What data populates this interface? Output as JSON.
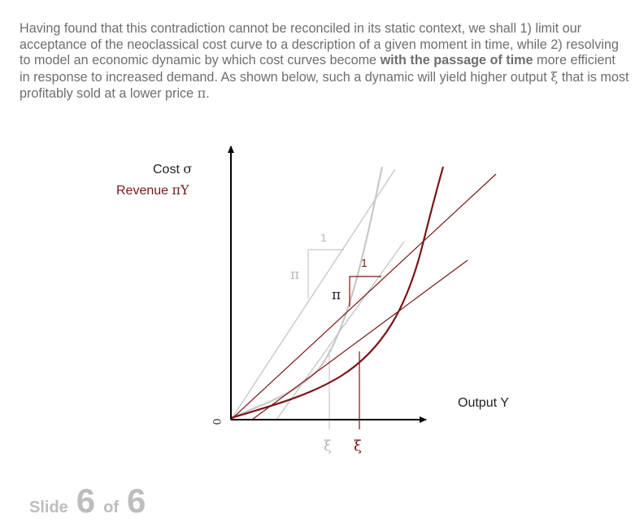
{
  "paragraph": {
    "t1": "Having found that this contradiction cannot be reconciled in its static context, we shall 1) limit our acceptance of the neoclassical cost curve to a description of a given moment in time, while 2) resolving to model an economic dynamic by which cost curves become ",
    "b1": "with the passage of time",
    "t2": " more efficient in response to increased demand. As shown below, such a dynamic will yield higher output ",
    "xi": "ξ",
    "t3": " that is most profitably sold at a lower price ",
    "pi": "π",
    "t4": "."
  },
  "diagram": {
    "cost_label": "Cost",
    "cost_symbol": "σ",
    "revenue_label": "Revenue",
    "revenue_symbol": "πY",
    "x_axis_label": "Output Y",
    "origin_label": "0",
    "old_slope_label": "π",
    "old_unit_label": "1",
    "new_slope_label": "π",
    "new_unit_label": "1",
    "old_output_label": "ξ",
    "new_output_label": "ξ",
    "colors": {
      "old": "#c4c4c4",
      "new": "#7a1616",
      "axis": "#000000"
    }
  },
  "footer": {
    "slide_word": "Slide",
    "current": "6",
    "of_word": "of",
    "total": "6"
  }
}
